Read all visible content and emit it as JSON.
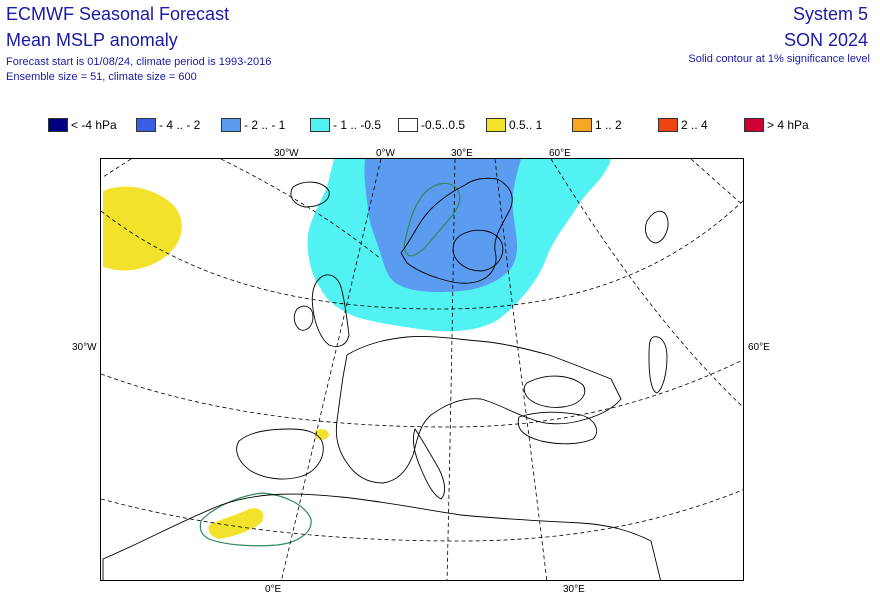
{
  "header": {
    "title": "ECMWF Seasonal Forecast",
    "subtitle": "Mean MSLP anomaly",
    "forecast_info": "Forecast start is 01/08/24, climate period is 1993-2016",
    "ensemble_info": "Ensemble size = 51, climate size = 600",
    "system": "System 5",
    "season": "SON 2024",
    "significance_note": "Solid contour at 1% significance level"
  },
  "legend": [
    {
      "label": "< -4 hPa",
      "color": "#000080"
    },
    {
      "label": "- 4 .. - 2",
      "color": "#3a5fe6"
    },
    {
      "label": "- 2 .. - 1",
      "color": "#5c9cf0"
    },
    {
      "label": "- 1 .. -0.5",
      "color": "#52f2f2"
    },
    {
      "label": "-0.5..0.5",
      "color": "#ffffff"
    },
    {
      "label": "0.5.. 1",
      "color": "#f2e22b"
    },
    {
      "label": "1 .. 2",
      "color": "#f5a623"
    },
    {
      "label": "2 .. 4",
      "color": "#ee4411"
    },
    {
      "label": "> 4 hPa",
      "color": "#cc0033"
    }
  ],
  "map": {
    "top_labels": [
      "30°W",
      "0°W",
      "30°E",
      "60°E"
    ],
    "left_label": "30°W",
    "right_label": "60°E",
    "bottom_labels": [
      "0°E",
      "30°E"
    ]
  }
}
